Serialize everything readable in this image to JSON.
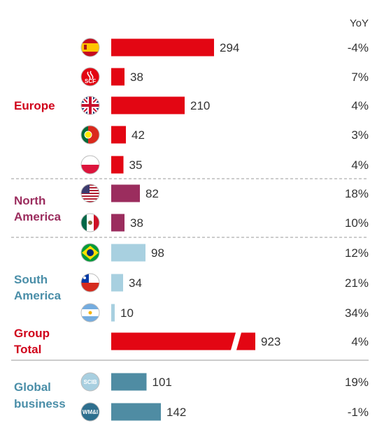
{
  "chart_data": {
    "type": "bar",
    "orientation": "horizontal",
    "yoy_header": "YoY",
    "regions": [
      {
        "name": "Europe",
        "color": "#d0021b"
      },
      {
        "name": "North America",
        "lines": [
          "North",
          "America"
        ],
        "color": "#9b2d5e"
      },
      {
        "name": "South America",
        "lines": [
          "South",
          "America"
        ],
        "color": "#4a8ea8"
      },
      {
        "name": "Group Total",
        "lines": [
          "Group",
          "Total"
        ],
        "color": "#d0021b"
      },
      {
        "name": "Global business",
        "lines": [
          "Global",
          "business"
        ],
        "color": "#4a8ea8"
      }
    ],
    "rows": [
      {
        "icon": "spain-flag-icon",
        "value": 294,
        "value_label": "294",
        "yoy": "-4%",
        "color": "#e30613"
      },
      {
        "icon": "santander-consumer-finance-icon",
        "badge": "SCF",
        "value": 38,
        "value_label": "38",
        "yoy": "7%",
        "color": "#e30613"
      },
      {
        "icon": "uk-flag-icon",
        "value": 210,
        "value_label": "210",
        "yoy": "4%",
        "color": "#e30613"
      },
      {
        "icon": "portugal-flag-icon",
        "value": 42,
        "value_label": "42",
        "yoy": "3%",
        "color": "#e30613"
      },
      {
        "icon": "poland-flag-icon",
        "value": 35,
        "value_label": "35",
        "yoy": "4%",
        "color": "#e30613"
      },
      {
        "icon": "usa-flag-icon",
        "value": 82,
        "value_label": "82",
        "yoy": "18%",
        "color": "#9b2d5e"
      },
      {
        "icon": "mexico-flag-icon",
        "value": 38,
        "value_label": "38",
        "yoy": "10%",
        "color": "#9b2d5e"
      },
      {
        "icon": "brazil-flag-icon",
        "value": 98,
        "value_label": "98",
        "yoy": "12%",
        "color": "#a8d0e0"
      },
      {
        "icon": "chile-flag-icon",
        "value": 34,
        "value_label": "34",
        "yoy": "21%",
        "color": "#a8d0e0"
      },
      {
        "icon": "argentina-flag-icon",
        "value": 10,
        "value_label": "10",
        "yoy": "34%",
        "color": "#a8d0e0"
      },
      {
        "icon": "",
        "value": 923,
        "value_label": "923",
        "yoy": "4%",
        "color": "#e30613",
        "broken": true,
        "yoy_color": "#e30613"
      },
      {
        "icon": "scib-badge-icon",
        "badge": "SCIB",
        "value": 101,
        "value_label": "101",
        "yoy": "19%",
        "color": "#4f8ca3"
      },
      {
        "icon": "wmi-badge-icon",
        "badge": "WM&I",
        "value": 142,
        "value_label": "142",
        "yoy": "-1%",
        "color": "#4f8ca3"
      }
    ]
  }
}
